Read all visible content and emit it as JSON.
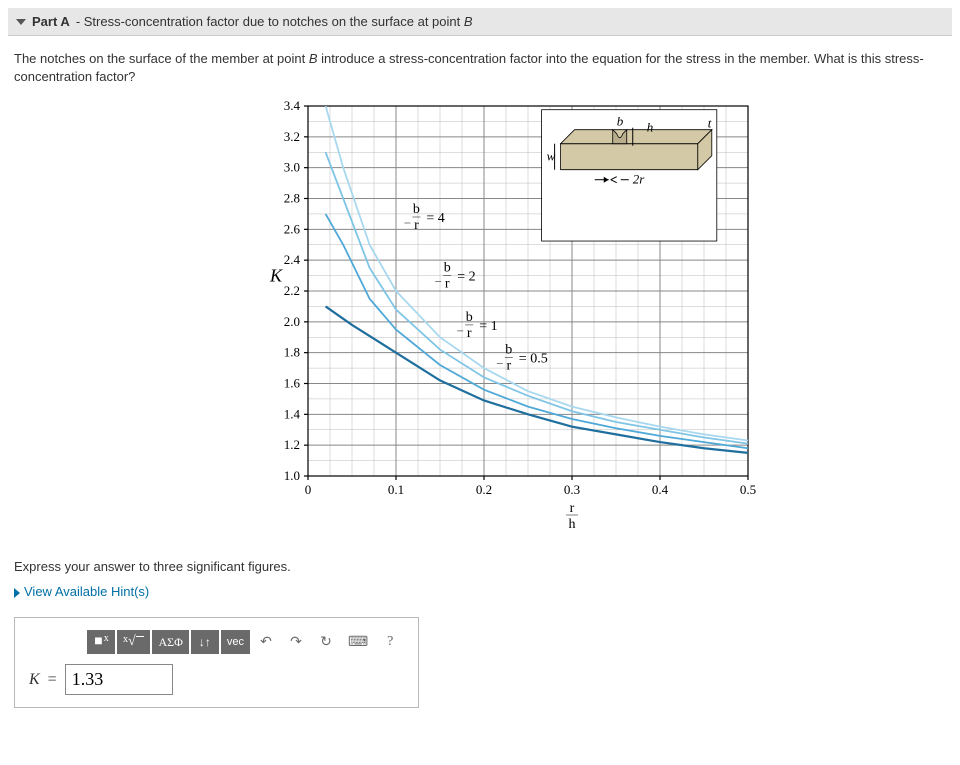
{
  "header": {
    "part_label": "Part A",
    "subtitle_prefix": "- Stress-concentration factor due to notches on the surface at point ",
    "point": "B"
  },
  "prompt": "The notches on the surface of the member at point B introduce a stress-concentration factor into the equation for the stress in the member. What is this stress-concentration factor?",
  "chart": {
    "type": "line",
    "yaxis": {
      "label": "K",
      "min": 1.0,
      "max": 3.4,
      "ticks": [
        "1.0",
        "1.2",
        "1.4",
        "1.6",
        "1.8",
        "2.0",
        "2.2",
        "2.4",
        "2.6",
        "2.8",
        "3.0",
        "3.2",
        "3.4"
      ],
      "step_major": 0.2,
      "minor_per_major": 2
    },
    "xaxis": {
      "label_top": "r",
      "label_bot": "h",
      "min": 0,
      "max": 0.5,
      "ticks": [
        "0",
        "0.1",
        "0.2",
        "0.3",
        "0.4",
        "0.5"
      ],
      "step_major": 0.1,
      "minor_per_major": 4
    },
    "curve_labels": [
      "= 4",
      "= 2",
      "= 1",
      "= 0.5"
    ],
    "curve_frac_top": "b",
    "curve_frac_bot": "r",
    "colors": {
      "c1": "#1e6e9e",
      "c2": "#4fa9d8",
      "c3": "#7fc5e6",
      "c4": "#a8d8ef",
      "grid": "#888",
      "grid_minor": "#bbb"
    },
    "series": {
      "b_r_4": [
        [
          0.02,
          3.4
        ],
        [
          0.04,
          3.0
        ],
        [
          0.07,
          2.5
        ],
        [
          0.1,
          2.2
        ],
        [
          0.15,
          1.9
        ],
        [
          0.2,
          1.7
        ],
        [
          0.25,
          1.55
        ],
        [
          0.3,
          1.45
        ],
        [
          0.35,
          1.38
        ],
        [
          0.4,
          1.32
        ],
        [
          0.45,
          1.27
        ],
        [
          0.5,
          1.23
        ]
      ],
      "b_r_2": [
        [
          0.02,
          3.1
        ],
        [
          0.04,
          2.8
        ],
        [
          0.07,
          2.35
        ],
        [
          0.1,
          2.08
        ],
        [
          0.15,
          1.82
        ],
        [
          0.2,
          1.64
        ],
        [
          0.25,
          1.52
        ],
        [
          0.3,
          1.42
        ],
        [
          0.35,
          1.35
        ],
        [
          0.4,
          1.3
        ],
        [
          0.45,
          1.25
        ],
        [
          0.5,
          1.21
        ]
      ],
      "b_r_1": [
        [
          0.02,
          2.7
        ],
        [
          0.04,
          2.5
        ],
        [
          0.07,
          2.15
        ],
        [
          0.1,
          1.95
        ],
        [
          0.15,
          1.72
        ],
        [
          0.2,
          1.56
        ],
        [
          0.25,
          1.45
        ],
        [
          0.3,
          1.37
        ],
        [
          0.35,
          1.31
        ],
        [
          0.4,
          1.26
        ],
        [
          0.45,
          1.22
        ],
        [
          0.5,
          1.18
        ]
      ],
      "b_r_0_5": [
        [
          0.02,
          2.1
        ],
        [
          0.05,
          1.98
        ],
        [
          0.1,
          1.8
        ],
        [
          0.15,
          1.62
        ],
        [
          0.2,
          1.49
        ],
        [
          0.25,
          1.4
        ],
        [
          0.3,
          1.32
        ],
        [
          0.35,
          1.27
        ],
        [
          0.4,
          1.22
        ],
        [
          0.45,
          1.18
        ],
        [
          0.5,
          1.15
        ]
      ]
    },
    "inset": {
      "labels": {
        "b": "b",
        "w": "w",
        "h": "h",
        "t": "t",
        "tr": "2r"
      }
    }
  },
  "instruction": "Express your answer to three significant figures.",
  "hints_label": "View Available Hint(s)",
  "toolbar": {
    "template": "■",
    "root": "·",
    "greek": "ΑΣΦ",
    "updown": "↓↑",
    "vec": "vec",
    "undo": "↶",
    "redo": "↷",
    "reset": "↻",
    "keyboard": "⌨",
    "help": "?"
  },
  "answer": {
    "var": "K",
    "eq": "=",
    "value": "1.33"
  }
}
